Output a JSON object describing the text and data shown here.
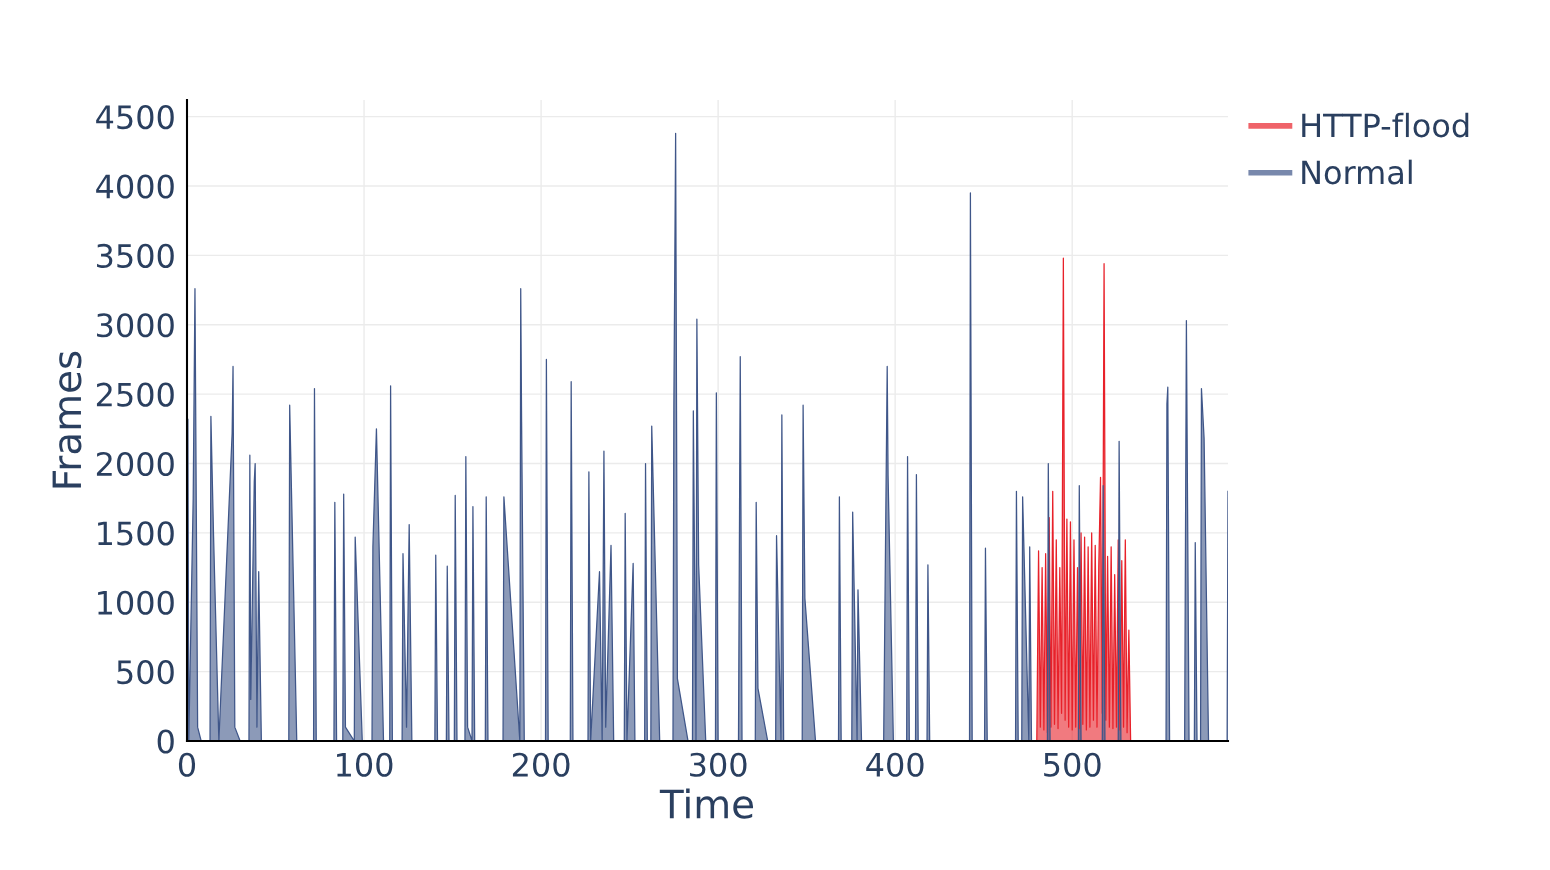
{
  "chart_data": {
    "type": "area",
    "xlabel": "Time",
    "ylabel": "Frames",
    "xlim": [
      0,
      588
    ],
    "xticks": [
      0,
      100,
      200,
      300,
      400,
      500
    ],
    "ylim": [
      0,
      4620
    ],
    "yticks": [
      0,
      500,
      1000,
      1500,
      2000,
      2500,
      3000,
      3500,
      4000,
      4500
    ],
    "grid": true,
    "legend": "top right",
    "series": [
      {
        "name": "HTTP-flood",
        "color": "#e8212a",
        "x": [
          480,
          481,
          482,
          483,
          484,
          485,
          486,
          487,
          488,
          489,
          490,
          491,
          492,
          493,
          494,
          495,
          496,
          497,
          498,
          499,
          500,
          501,
          502,
          503,
          504,
          505,
          506,
          507,
          508,
          509,
          510,
          511,
          512,
          513,
          514,
          515,
          516,
          517,
          518,
          519,
          520,
          521,
          522,
          523,
          524,
          525,
          526,
          527,
          528,
          529,
          530,
          531,
          532,
          533
        ],
        "values": [
          0,
          1370,
          100,
          1250,
          80,
          1350,
          60,
          1610,
          100,
          1800,
          120,
          1450,
          90,
          1250,
          200,
          3480,
          150,
          1600,
          100,
          1580,
          80,
          1450,
          100,
          1250,
          90,
          1500,
          120,
          1470,
          80,
          1400,
          100,
          1500,
          150,
          1410,
          100,
          1250,
          1900,
          200,
          3440,
          150,
          1330,
          100,
          1400,
          90,
          1200,
          100,
          1450,
          80,
          1300,
          100,
          1450,
          60,
          800,
          0
        ]
      },
      {
        "name": "Normal",
        "color": "#3f5689",
        "x": [
          0,
          0.5,
          1,
          3.5,
          4.5,
          6,
          8,
          13,
          13.5,
          15,
          18,
          25.5,
          26,
          27,
          30,
          35,
          35.5,
          36,
          38,
          38.5,
          39.5,
          40.5,
          42,
          57.5,
          58,
          62,
          71.5,
          72,
          73,
          83,
          83.5,
          84.5,
          88,
          88.5,
          89.5,
          94.5,
          95,
          99,
          104.5,
          105,
          107,
          111,
          114.5,
          115,
          116,
          121.5,
          122,
          124,
          125.5,
          127,
          140,
          140.5,
          141.5,
          146.5,
          147,
          148,
          151,
          151.5,
          152.5,
          157,
          157.5,
          158.5,
          161,
          161.5,
          162.5,
          168.5,
          169,
          170,
          178.5,
          179,
          188,
          188.5,
          189,
          190.5,
          202.5,
          203,
          204,
          216.5,
          217,
          218,
          226.5,
          227,
          228,
          233,
          234.5,
          235.5,
          236.5,
          239.5,
          241,
          247,
          247.5,
          248.5,
          252,
          253,
          258.5,
          259,
          260,
          262,
          262.5,
          267,
          274.5,
          275,
          276,
          277,
          283,
          285.5,
          286,
          287.5,
          288,
          289,
          293,
          298.5,
          299,
          300,
          311.5,
          312.5,
          313.5,
          321,
          321.5,
          322.5,
          328,
          332.5,
          333,
          335.5,
          336,
          337,
          347.5,
          348,
          349,
          355,
          368,
          368.5,
          369.5,
          375.5,
          376,
          378.5,
          379,
          381,
          393.5,
          395.5,
          396,
          399,
          406.5,
          407,
          408,
          411.5,
          412,
          413,
          418,
          418.5,
          419.5,
          442,
          442.5,
          443.5,
          450.5,
          451,
          452,
          468,
          468.5,
          469.5,
          471.5,
          472,
          475.5,
          476,
          477,
          486,
          486.5,
          487.5,
          503.5,
          504,
          505,
          517,
          517.5,
          518.5,
          526,
          526.5,
          527.5,
          553,
          553.5,
          554,
          555,
          563.5,
          564.5,
          566,
          569,
          569.5,
          570.5,
          572.5,
          573,
          574.5,
          577,
          587.5,
          588
        ],
        "values": [
          0,
          2320,
          0,
          1750,
          3260,
          100,
          0,
          0,
          2340,
          1480,
          0,
          2220,
          2700,
          100,
          0,
          0,
          2060,
          300,
          1870,
          2000,
          100,
          1220,
          0,
          0,
          2420,
          0,
          0,
          2540,
          0,
          0,
          1720,
          0,
          0,
          1780,
          100,
          0,
          1470,
          0,
          0,
          1400,
          2250,
          0,
          0,
          2560,
          0,
          0,
          1350,
          100,
          1560,
          0,
          0,
          1340,
          0,
          0,
          1260,
          0,
          0,
          1770,
          0,
          0,
          2050,
          100,
          0,
          1690,
          0,
          0,
          1760,
          0,
          0,
          1760,
          0,
          3260,
          2300,
          0,
          0,
          2750,
          0,
          0,
          2590,
          0,
          0,
          1940,
          0,
          1220,
          0,
          2090,
          100,
          1410,
          0,
          0,
          1640,
          0,
          1280,
          0,
          0,
          2000,
          0,
          0,
          2270,
          0,
          0,
          2420,
          4380,
          450,
          0,
          0,
          2380,
          0,
          3040,
          1270,
          0,
          0,
          2510,
          0,
          0,
          2770,
          0,
          0,
          1720,
          380,
          0,
          0,
          1480,
          0,
          2350,
          0,
          0,
          2420,
          1030,
          0,
          0,
          1760,
          0,
          0,
          1650,
          0,
          1090,
          0,
          0,
          2700,
          1910,
          0,
          0,
          2050,
          0,
          0,
          1920,
          0,
          0,
          1270,
          0,
          0,
          3950,
          0,
          0,
          1390,
          0,
          0,
          1800,
          0,
          0,
          1760,
          0,
          1400,
          0,
          0,
          2000,
          0,
          0,
          1840,
          0,
          0,
          1840,
          0,
          0,
          2160,
          0,
          0,
          2430,
          2550,
          0,
          0,
          3030,
          0,
          0,
          1430,
          0,
          0,
          2540,
          2180,
          0,
          0,
          1800
        ]
      }
    ]
  }
}
